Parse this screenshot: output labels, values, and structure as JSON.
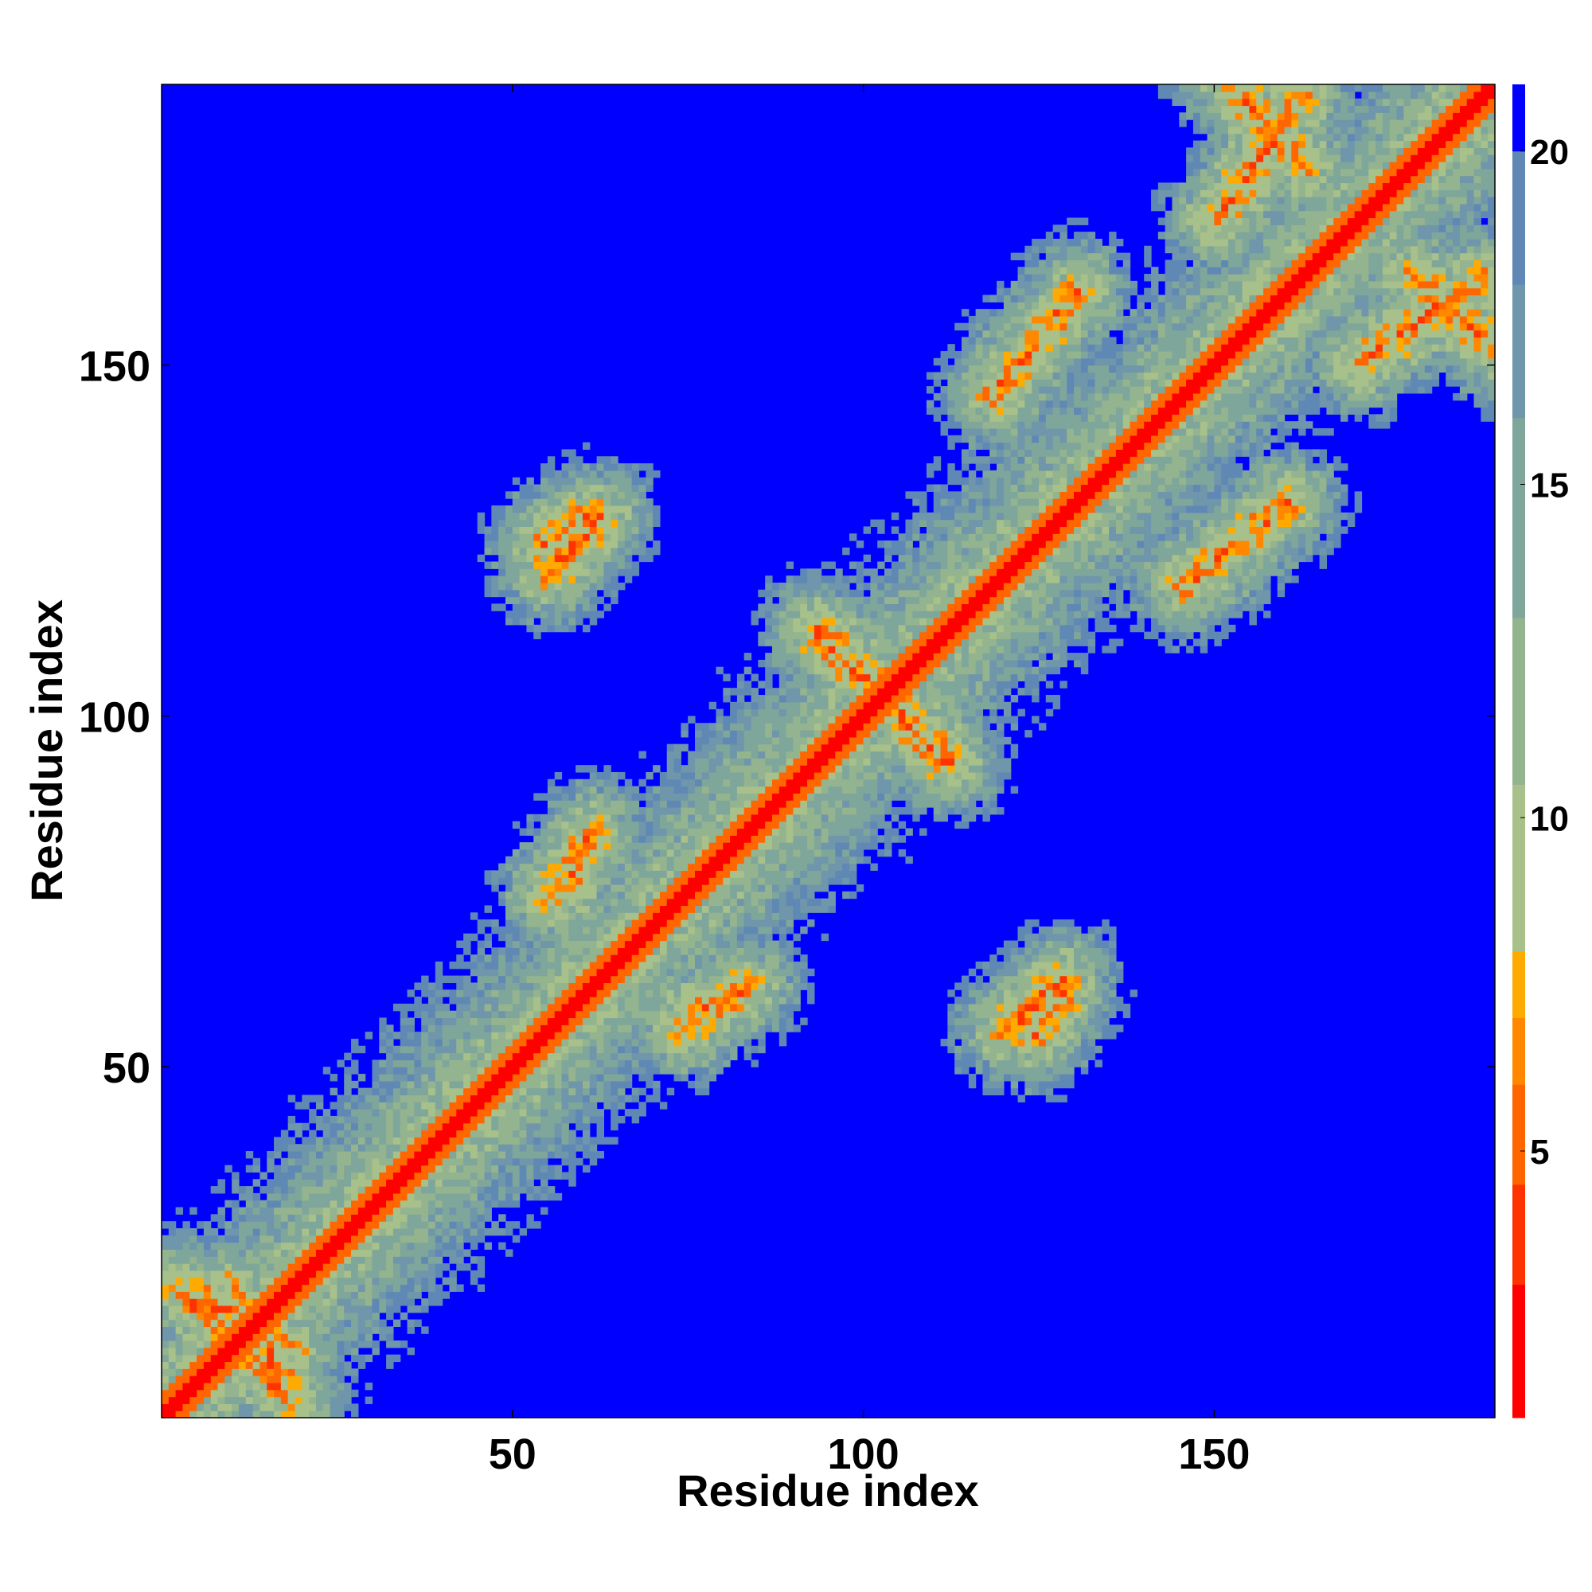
{
  "chart_data": {
    "type": "heatmap",
    "title": "",
    "xlabel": "Residue index",
    "ylabel": "Residue index",
    "xlim": [
      0,
      190
    ],
    "ylim": [
      0,
      190
    ],
    "x_ticks": [
      50,
      100,
      150
    ],
    "y_ticks": [
      50,
      100,
      150
    ],
    "colorbar": {
      "range": [
        1,
        21
      ],
      "ticks": [
        5,
        10,
        15,
        20
      ],
      "colors": [
        {
          "from": 1,
          "to": 3,
          "color": "#ff0000"
        },
        {
          "from": 3,
          "to": 4.5,
          "color": "#ff3300"
        },
        {
          "from": 4.5,
          "to": 6,
          "color": "#ff6600"
        },
        {
          "from": 6,
          "to": 7,
          "color": "#ff8800"
        },
        {
          "from": 7,
          "to": 8,
          "color": "#ffaa00"
        },
        {
          "from": 8,
          "to": 10.5,
          "color": "#a8c08a"
        },
        {
          "from": 10.5,
          "to": 13,
          "color": "#94b490"
        },
        {
          "from": 13,
          "to": 16,
          "color": "#7fa69a"
        },
        {
          "from": 16,
          "to": 18,
          "color": "#6f96aa"
        },
        {
          "from": 18,
          "to": 20,
          "color": "#5f88b4"
        },
        {
          "from": 20,
          "to": 21,
          "color": "#0000ff"
        }
      ]
    },
    "structure": {
      "n_residues": 190,
      "main_diagonal": true,
      "antiparallel_bands": [
        {
          "x1": 93,
          "y1": 111,
          "x2": 112,
          "y2": 93
        },
        {
          "x1": 10,
          "y1": 18,
          "x2": 18,
          "y2": 2
        },
        {
          "x1": 2,
          "y1": 18,
          "x2": 10,
          "y2": 10
        },
        {
          "x1": 178,
          "y1": 162,
          "x2": 192,
          "y2": 150
        }
      ],
      "parallel_bands": [
        {
          "x1": 54,
          "y1": 124,
          "x2": 60,
          "y2": 128
        },
        {
          "x1": 150,
          "y1": 170,
          "x2": 162,
          "y2": 188
        },
        {
          "x1": 118,
          "y1": 145,
          "x2": 130,
          "y2": 160
        },
        {
          "x1": 148,
          "y1": 120,
          "x2": 160,
          "y2": 130
        },
        {
          "x1": 120,
          "y1": 55,
          "x2": 128,
          "y2": 62
        },
        {
          "x1": 75,
          "y1": 57,
          "x2": 83,
          "y2": 61
        },
        {
          "x1": 55,
          "y1": 74,
          "x2": 61,
          "y2": 83
        }
      ]
    }
  }
}
